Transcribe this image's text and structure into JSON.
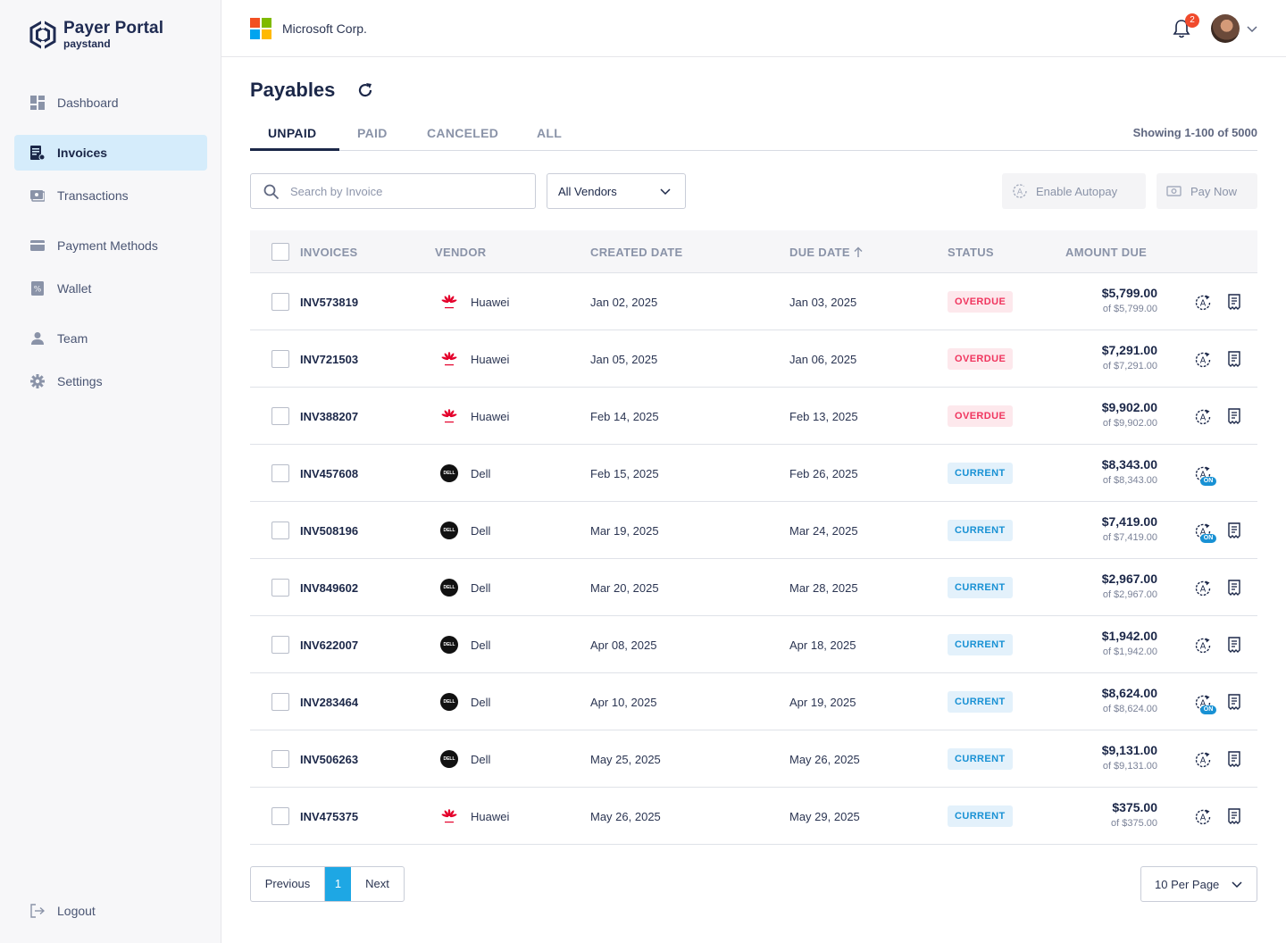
{
  "brand": {
    "title": "Payer Portal",
    "subtitle": "paystand"
  },
  "sidebar": {
    "items": [
      {
        "label": "Dashboard",
        "icon": "dashboard-icon",
        "active": false
      },
      {
        "label": "Invoices",
        "icon": "invoice-icon",
        "active": true
      },
      {
        "label": "Transactions",
        "icon": "transactions-icon",
        "active": false
      },
      {
        "label": "Payment Methods",
        "icon": "card-icon",
        "active": false
      },
      {
        "label": "Wallet",
        "icon": "wallet-icon",
        "active": false
      },
      {
        "label": "Team",
        "icon": "person-icon",
        "active": false
      },
      {
        "label": "Settings",
        "icon": "gear-icon",
        "active": false
      }
    ],
    "logout": "Logout"
  },
  "header": {
    "company": "Microsoft Corp.",
    "notifications": "2"
  },
  "main": {
    "title": "Payables",
    "tabs": [
      "UNPAID",
      "PAID",
      "CANCELED",
      "ALL"
    ],
    "showing": "Showing 1-100 of 5000",
    "search_placeholder": "Search by Invoice",
    "vendor_filter": "All Vendors",
    "enable_autopay": "Enable Autopay",
    "pay_now": "Pay Now"
  },
  "table": {
    "columns": [
      "INVOICES",
      "VENDOR",
      "CREATED DATE",
      "DUE DATE",
      "STATUS",
      "AMOUNT DUE"
    ],
    "rows": [
      {
        "invoice": "INV573819",
        "vendor": "Huawei",
        "created": "Jan 02, 2025",
        "due": "Jan 03, 2025",
        "status": "OVERDUE",
        "amount": "$5,799.00",
        "of": "of $5,799.00",
        "autopay_on": false,
        "receipt": true
      },
      {
        "invoice": "INV721503",
        "vendor": "Huawei",
        "created": "Jan 05, 2025",
        "due": "Jan 06, 2025",
        "status": "OVERDUE",
        "amount": "$7,291.00",
        "of": "of $7,291.00",
        "autopay_on": false,
        "receipt": true
      },
      {
        "invoice": "INV388207",
        "vendor": "Huawei",
        "created": "Feb 14, 2025",
        "due": "Feb 13, 2025",
        "status": "OVERDUE",
        "amount": "$9,902.00",
        "of": "of $9,902.00",
        "autopay_on": false,
        "receipt": true
      },
      {
        "invoice": "INV457608",
        "vendor": "Dell",
        "created": "Feb 15, 2025",
        "due": "Feb 26, 2025",
        "status": "CURRENT",
        "amount": "$8,343.00",
        "of": "of $8,343.00",
        "autopay_on": true,
        "receipt": false
      },
      {
        "invoice": "INV508196",
        "vendor": "Dell",
        "created": "Mar 19, 2025",
        "due": "Mar 24, 2025",
        "status": "CURRENT",
        "amount": "$7,419.00",
        "of": "of $7,419.00",
        "autopay_on": true,
        "receipt": true
      },
      {
        "invoice": "INV849602",
        "vendor": "Dell",
        "created": "Mar 20, 2025",
        "due": "Mar 28, 2025",
        "status": "CURRENT",
        "amount": "$2,967.00",
        "of": "of $2,967.00",
        "autopay_on": false,
        "receipt": true
      },
      {
        "invoice": "INV622007",
        "vendor": "Dell",
        "created": "Apr 08, 2025",
        "due": "Apr 18, 2025",
        "status": "CURRENT",
        "amount": "$1,942.00",
        "of": "of $1,942.00",
        "autopay_on": false,
        "receipt": true
      },
      {
        "invoice": "INV283464",
        "vendor": "Dell",
        "created": "Apr 10, 2025",
        "due": "Apr 19, 2025",
        "status": "CURRENT",
        "amount": "$8,624.00",
        "of": "of $8,624.00",
        "autopay_on": true,
        "receipt": true
      },
      {
        "invoice": "INV506263",
        "vendor": "Dell",
        "created": "May 25, 2025",
        "due": "May 26, 2025",
        "status": "CURRENT",
        "amount": "$9,131.00",
        "of": "of $9,131.00",
        "autopay_on": false,
        "receipt": true
      },
      {
        "invoice": "INV475375",
        "vendor": "Huawei",
        "created": "May 26, 2025",
        "due": "May 29, 2025",
        "status": "CURRENT",
        "amount": "$375.00",
        "of": "of $375.00",
        "autopay_on": false,
        "receipt": true
      }
    ],
    "on_label": "ON"
  },
  "pagination": {
    "previous": "Previous",
    "current": "1",
    "next": "Next",
    "per_page": "10 Per Page"
  },
  "colors": {
    "accent": "#1ea7e4",
    "overdue": "#f0355e",
    "current": "#1891d4",
    "nav_active": "#d5ecfb"
  }
}
